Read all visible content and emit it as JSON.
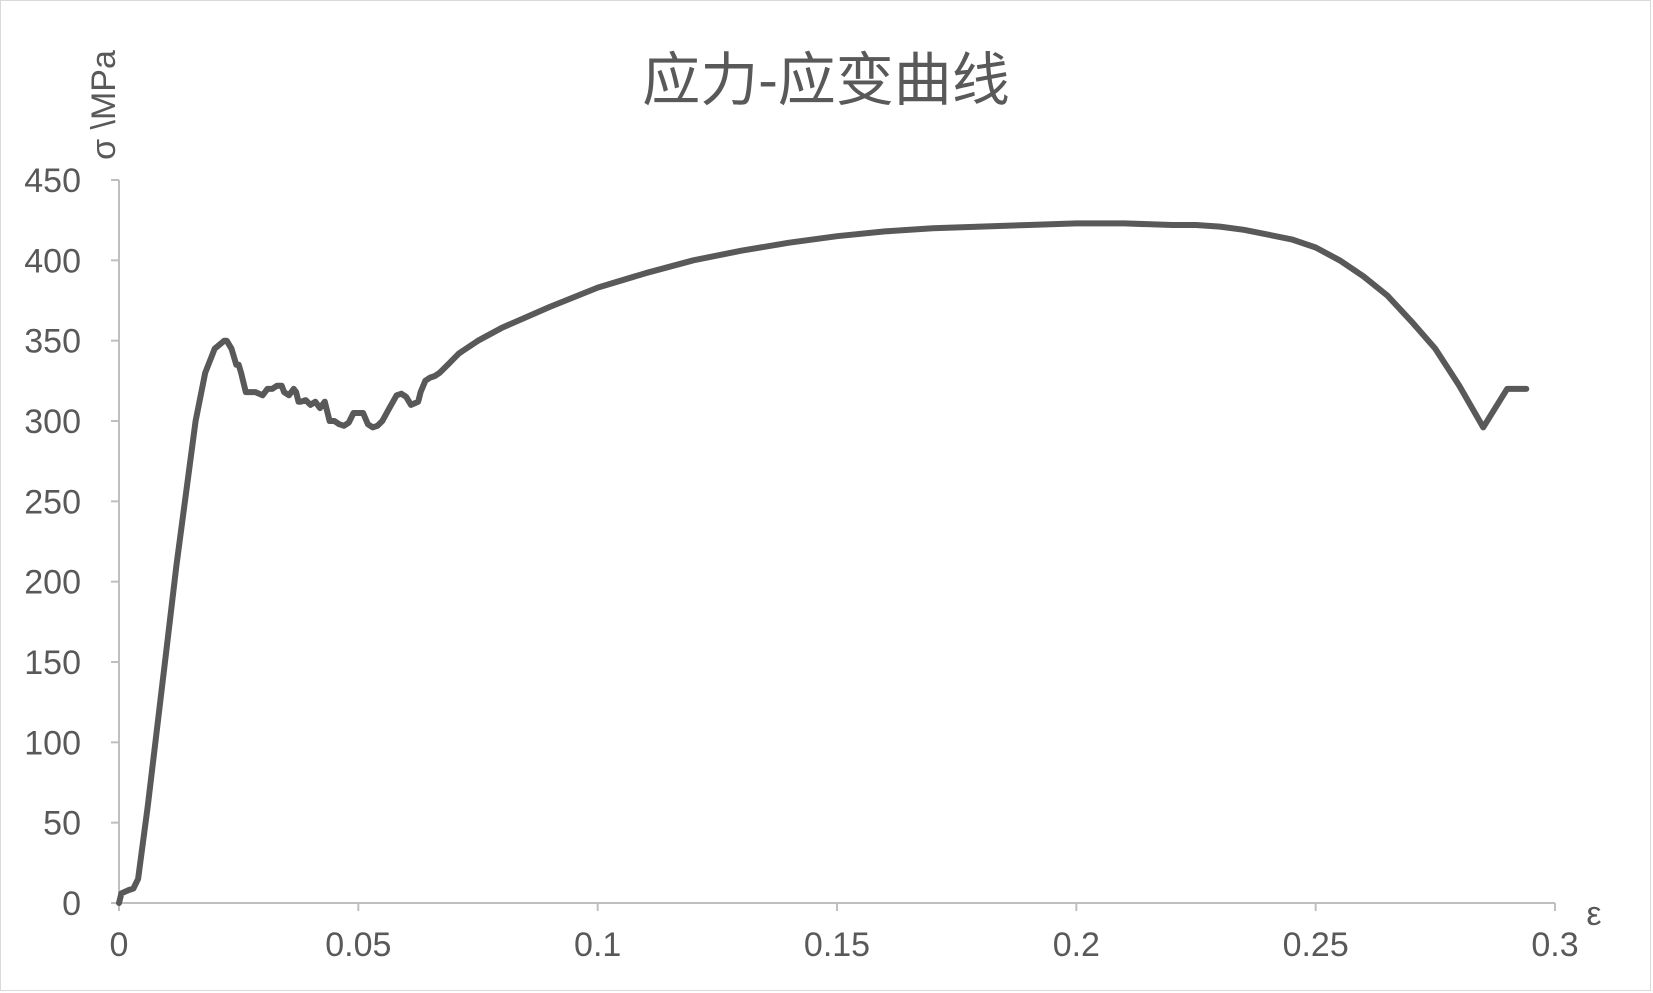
{
  "chart_data": {
    "type": "line",
    "title": "应力-应变曲线",
    "xlabel": "ε",
    "ylabel": "σ \\MPa",
    "xlim": [
      0,
      0.3
    ],
    "ylim": [
      0,
      450
    ],
    "xticks": [
      "0",
      "0.05",
      "0.1",
      "0.15",
      "0.2",
      "0.25",
      "0.3"
    ],
    "yticks": [
      "0",
      "50",
      "100",
      "150",
      "200",
      "250",
      "300",
      "350",
      "400",
      "450"
    ],
    "grid": false,
    "legend": "none",
    "line_color": "#595959",
    "axis_color": "#bfbfbf",
    "series": [
      {
        "x": [
          0,
          0.0005,
          0.002,
          0.003,
          0.004,
          0.006,
          0.008,
          0.01,
          0.012,
          0.014,
          0.016,
          0.018,
          0.02,
          0.022,
          0.0225,
          0.0235,
          0.0245,
          0.025,
          0.0255,
          0.0265,
          0.0275,
          0.0285,
          0.03,
          0.031,
          0.032,
          0.033,
          0.034,
          0.0345,
          0.0355,
          0.0365,
          0.037,
          0.0375,
          0.038,
          0.039,
          0.04,
          0.041,
          0.042,
          0.043,
          0.044,
          0.045,
          0.046,
          0.047,
          0.048,
          0.049,
          0.05,
          0.051,
          0.052,
          0.053,
          0.054,
          0.055,
          0.0565,
          0.058,
          0.059,
          0.06,
          0.061,
          0.0625,
          0.063,
          0.064,
          0.065,
          0.066,
          0.067,
          0.068,
          0.069,
          0.07,
          0.071,
          0.072,
          0.075,
          0.08,
          0.09,
          0.1,
          0.11,
          0.12,
          0.13,
          0.14,
          0.15,
          0.16,
          0.17,
          0.18,
          0.19,
          0.2,
          0.21,
          0.22,
          0.225,
          0.23,
          0.235,
          0.24,
          0.245,
          0.25,
          0.255,
          0.26,
          0.265,
          0.27,
          0.275,
          0.28,
          0.285,
          0.29,
          0.294
        ],
        "y": [
          0,
          6,
          8,
          9,
          15,
          60,
          110,
          160,
          210,
          255,
          300,
          330,
          345,
          350,
          350,
          345,
          335,
          335,
          330,
          318,
          318,
          318,
          316,
          320,
          320,
          322,
          322,
          318,
          316,
          320,
          318,
          312,
          312,
          313,
          310,
          312,
          308,
          312,
          300,
          300,
          298,
          297,
          299,
          305,
          305,
          305,
          298,
          296,
          297,
          300,
          308,
          316,
          317,
          315,
          310,
          312,
          318,
          325,
          327,
          328,
          330,
          333,
          336,
          339,
          342,
          344,
          350,
          358,
          371,
          383,
          392,
          400,
          406,
          411,
          415,
          418,
          420,
          421,
          422,
          423,
          423,
          422,
          422,
          421,
          419,
          416,
          413,
          408,
          400,
          390,
          378,
          362,
          345,
          322,
          296,
          320,
          320
        ]
      }
    ]
  }
}
